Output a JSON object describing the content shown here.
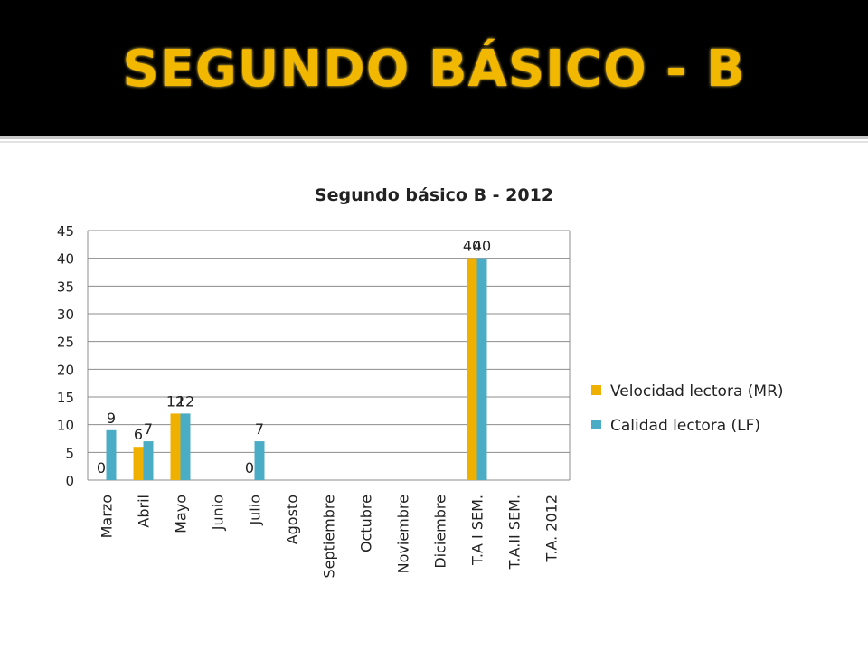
{
  "slide": {
    "title": "SEGUNDO BÁSICO - B",
    "title_color": "#f2b800",
    "band_color": "#000000"
  },
  "chart_data": {
    "type": "bar",
    "title": "Segundo básico B - 2012",
    "xlabel": "",
    "ylabel": "",
    "ylim": [
      0,
      45
    ],
    "yticks": [
      0,
      5,
      10,
      15,
      20,
      25,
      30,
      35,
      40,
      45
    ],
    "grid": true,
    "legend_position": "right",
    "categories": [
      "Marzo",
      "Abril",
      "Mayo",
      "Junio",
      "Julio",
      "Agosto",
      "Septiembre",
      "Octubre",
      "Noviembre",
      "Diciembre",
      "T.A I SEM.",
      "T.A.II SEM.",
      "T.A. 2012"
    ],
    "series": [
      {
        "name": "Velocidad lectora (MR)",
        "color": "#f0b000",
        "values": [
          0,
          6,
          12,
          null,
          0,
          null,
          null,
          null,
          null,
          null,
          40,
          null,
          null
        ],
        "labels": [
          "0",
          "6",
          "12",
          "",
          "0",
          "",
          "",
          "",
          "",
          "",
          "40",
          "",
          ""
        ]
      },
      {
        "name": "Calidad lectora (LF)",
        "color": "#4bacc6",
        "values": [
          9,
          7,
          12,
          null,
          7,
          null,
          null,
          null,
          null,
          null,
          40,
          null,
          null
        ],
        "labels": [
          "9",
          "7",
          "12",
          "",
          "7",
          "",
          "",
          "",
          "",
          "",
          "40",
          "",
          ""
        ]
      }
    ]
  }
}
